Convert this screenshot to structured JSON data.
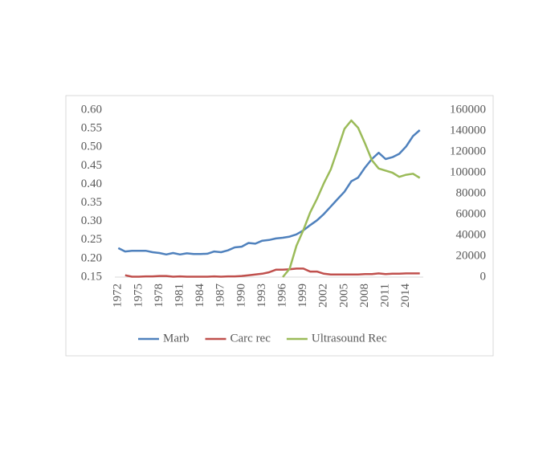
{
  "chart_data": {
    "type": "line",
    "categories": [
      "1972",
      null,
      null,
      "1975",
      null,
      null,
      "1978",
      null,
      null,
      "1981",
      null,
      null,
      "1984",
      null,
      null,
      "1987",
      null,
      null,
      "1990",
      null,
      null,
      "1993",
      null,
      null,
      "1996",
      null,
      null,
      "1999",
      null,
      null,
      "2002",
      null,
      null,
      "2005",
      null,
      null,
      "2008",
      null,
      null,
      "2011",
      null,
      null,
      "2014",
      null,
      null
    ],
    "series": [
      {
        "name": "Marb",
        "color": "#4f81bd",
        "values": [
          0.228,
          0.219,
          0.221,
          0.221,
          0.221,
          0.217,
          0.215,
          0.211,
          0.215,
          0.211,
          0.214,
          0.212,
          0.212,
          0.213,
          0.219,
          0.217,
          0.222,
          0.23,
          0.232,
          0.242,
          0.24,
          0.248,
          0.25,
          0.254,
          0.256,
          0.259,
          0.265,
          0.276,
          0.29,
          0.303,
          0.32,
          0.34,
          0.36,
          0.38,
          0.408,
          0.418,
          0.445,
          0.468,
          0.485,
          0.468,
          0.473,
          0.482,
          0.502,
          0.53,
          0.546
        ]
      },
      {
        "name": "Carc rec",
        "color": "#c0504d",
        "values": [
          null,
          0.155,
          0.151,
          0.151,
          0.152,
          0.152,
          0.153,
          0.153,
          0.151,
          0.152,
          0.151,
          0.151,
          0.151,
          0.151,
          0.152,
          0.151,
          0.152,
          0.152,
          0.153,
          0.155,
          0.157,
          0.159,
          0.163,
          0.17,
          0.17,
          0.171,
          0.173,
          0.173,
          0.165,
          0.165,
          0.159,
          0.157,
          0.157,
          0.157,
          0.157,
          0.157,
          0.158,
          0.158,
          0.16,
          0.158,
          0.159,
          0.159,
          0.16,
          0.16,
          0.16
        ]
      },
      {
        "name": "Ultrasound Rec",
        "color": "#9bbb59",
        "axis": "y2",
        "values": [
          null,
          null,
          null,
          null,
          null,
          null,
          null,
          null,
          null,
          null,
          null,
          null,
          null,
          null,
          null,
          null,
          null,
          null,
          null,
          null,
          null,
          null,
          null,
          null,
          0,
          8000,
          30000,
          45000,
          62000,
          75000,
          90000,
          103000,
          122000,
          142000,
          150000,
          143000,
          128000,
          112000,
          104000,
          102000,
          100000,
          96000,
          98000,
          99000,
          95000
        ]
      }
    ],
    "ylim": [
      0.15,
      0.6
    ],
    "yticks": [
      {
        "value": 0.15,
        "label": "0.15"
      },
      {
        "value": 0.2,
        "label": "0.20"
      },
      {
        "value": 0.25,
        "label": "0.25"
      },
      {
        "value": 0.3,
        "label": "0.30"
      },
      {
        "value": 0.35,
        "label": "0.35"
      },
      {
        "value": 0.4,
        "label": "0.40"
      },
      {
        "value": 0.45,
        "label": "0.45"
      },
      {
        "value": 0.5,
        "label": "0.50"
      },
      {
        "value": 0.55,
        "label": "0.55"
      },
      {
        "value": 0.6,
        "label": "0.60"
      }
    ],
    "y2lim": [
      0,
      160000
    ],
    "y2ticks": [
      0,
      20000,
      40000,
      60000,
      80000,
      100000,
      120000,
      140000,
      160000
    ],
    "legend": "bottom"
  }
}
